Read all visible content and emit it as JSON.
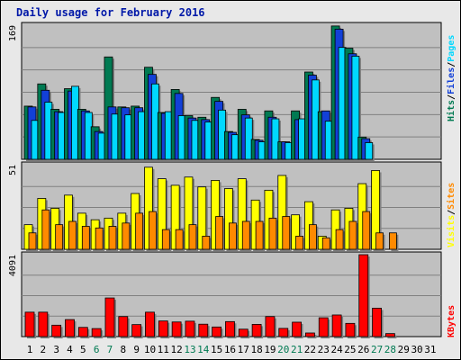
{
  "page": {
    "title": "Daily usage for February 2016"
  },
  "colors": {
    "hits": "#007a52",
    "files": "#1240d8",
    "pages": "#00d8ff",
    "visits": "#ffff00",
    "sites": "#ff8a00",
    "kbytes": "#ff0000",
    "panel_bg": "#c0c0c0",
    "weekend_label": "#007a52",
    "weekday_label": "#000000"
  },
  "chart_data": [
    {
      "type": "bar",
      "panel": "top",
      "ytick_label": "169",
      "legend": [
        "Hits",
        "Files",
        "Pages"
      ],
      "ylim": [
        0,
        169
      ],
      "x": [
        1,
        2,
        3,
        4,
        5,
        6,
        7,
        8,
        9,
        10,
        11,
        12,
        13,
        14,
        15,
        16,
        17,
        18,
        19,
        20,
        21,
        22,
        23,
        24,
        25,
        26,
        27,
        28,
        29,
        30,
        31
      ],
      "series": [
        {
          "name": "Hits",
          "values": [
            67,
            95,
            63,
            89,
            63,
            41,
            129,
            66,
            67,
            116,
            59,
            88,
            55,
            53,
            78,
            35,
            63,
            25,
            61,
            22,
            61,
            110,
            60,
            168,
            140,
            28,
            0,
            0,
            0,
            0,
            0
          ]
        },
        {
          "name": "Files",
          "values": [
            66,
            87,
            60,
            86,
            61,
            35,
            66,
            65,
            65,
            107,
            58,
            83,
            52,
            50,
            73,
            34,
            56,
            24,
            53,
            22,
            50,
            106,
            61,
            164,
            133,
            26,
            0,
            0,
            0,
            0,
            0
          ]
        },
        {
          "name": "Pages",
          "values": [
            49,
            72,
            59,
            92,
            59,
            33,
            57,
            56,
            60,
            95,
            60,
            55,
            49,
            47,
            62,
            31,
            52,
            22,
            51,
            21,
            51,
            100,
            48,
            141,
            130,
            21,
            0,
            0,
            0,
            0,
            0
          ]
        }
      ]
    },
    {
      "type": "bar",
      "panel": "middle",
      "ytick_label": "51",
      "legend": [
        "Visits",
        "Sites"
      ],
      "ylim": [
        0,
        51
      ],
      "x": [
        1,
        2,
        3,
        4,
        5,
        6,
        7,
        8,
        9,
        10,
        11,
        12,
        13,
        14,
        15,
        16,
        17,
        18,
        19,
        20,
        21,
        22,
        23,
        24,
        25,
        26,
        27,
        28,
        29,
        30,
        31
      ],
      "series": [
        {
          "name": "Visits",
          "values": [
            15,
            31,
            25,
            33,
            22,
            18,
            19,
            22,
            34,
            50,
            43,
            39,
            44,
            38,
            42,
            37,
            43,
            30,
            36,
            45,
            21,
            29,
            8,
            24,
            25,
            40,
            48,
            0,
            0,
            0,
            0
          ]
        },
        {
          "name": "Sites",
          "values": [
            10,
            24,
            15,
            17,
            14,
            13,
            14,
            16,
            22,
            23,
            12,
            12,
            15,
            8,
            20,
            16,
            17,
            17,
            19,
            20,
            8,
            15,
            7,
            12,
            17,
            23,
            10,
            10,
            0,
            0,
            0
          ]
        }
      ]
    },
    {
      "type": "bar",
      "panel": "bottom",
      "ytick_label": "4091",
      "legend": [
        "KBytes"
      ],
      "ylim": [
        0,
        4091
      ],
      "x": [
        1,
        2,
        3,
        4,
        5,
        6,
        7,
        8,
        9,
        10,
        11,
        12,
        13,
        14,
        15,
        16,
        17,
        18,
        19,
        20,
        21,
        22,
        23,
        24,
        25,
        26,
        27,
        28,
        29,
        30,
        31
      ],
      "series": [
        {
          "name": "KBytes",
          "values": [
            1220,
            1220,
            570,
            850,
            460,
            400,
            1930,
            1000,
            600,
            1220,
            780,
            730,
            770,
            620,
            480,
            750,
            370,
            610,
            1000,
            410,
            720,
            180,
            940,
            1080,
            660,
            4090,
            1420,
            150,
            0,
            0,
            0
          ]
        }
      ],
      "xtick_labels": [
        "1",
        "2",
        "3",
        "4",
        "5",
        "6",
        "7",
        "8",
        "9",
        "10",
        "11",
        "12",
        "13",
        "14",
        "15",
        "16",
        "17",
        "18",
        "19",
        "20",
        "21",
        "22",
        "23",
        "24",
        "25",
        "26",
        "27",
        "28",
        "29",
        "30",
        "31"
      ],
      "weekend_days": [
        6,
        7,
        13,
        14,
        20,
        21,
        27,
        28
      ]
    }
  ]
}
